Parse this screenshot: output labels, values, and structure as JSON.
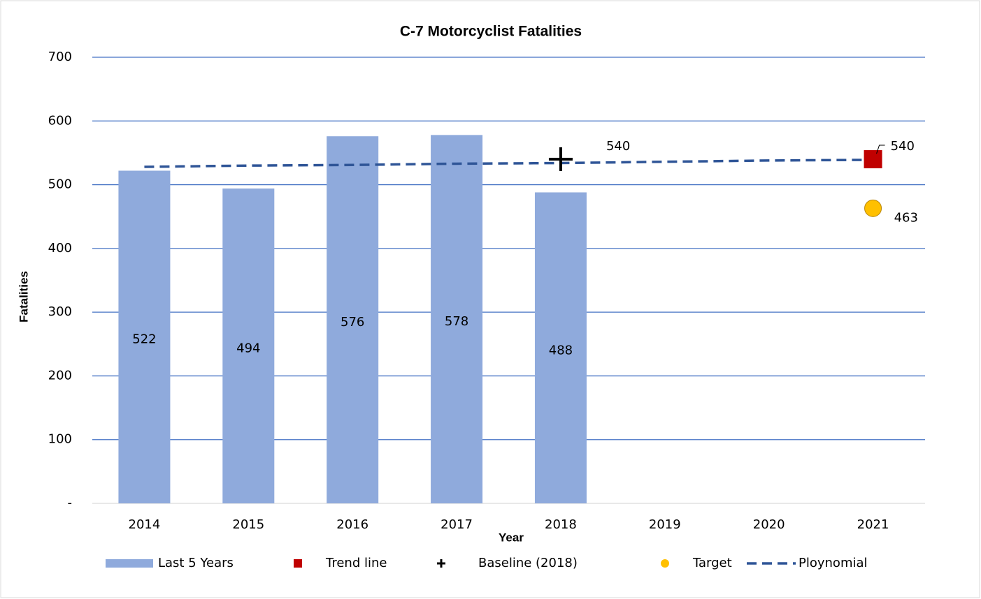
{
  "chart_data": {
    "type": "bar",
    "title": "C-7 Motorcyclist Fatalities",
    "x_label": "Year",
    "y_label": "Fatalities",
    "categories": [
      "2014",
      "2015",
      "2016",
      "2017",
      "2018",
      "2019",
      "2020",
      "2021"
    ],
    "ylim": [
      0,
      700
    ],
    "yticks": [
      {
        "value": 0,
        "label": "-"
      },
      100,
      200,
      300,
      400,
      500,
      600,
      700
    ],
    "grid": true,
    "legend": "bottom",
    "series": [
      {
        "name": "Last 5 Years",
        "type": "bar",
        "color": "#8faadc",
        "values": [
          522,
          494,
          576,
          578,
          488,
          null,
          null,
          null
        ]
      },
      {
        "name": "Trend line",
        "type": "scatter",
        "marker": "square",
        "color": "#c00000",
        "values": [
          null,
          null,
          null,
          null,
          null,
          null,
          null,
          540
        ]
      },
      {
        "name": "Baseline (2018)",
        "type": "scatter",
        "marker": "plus",
        "color": "#000000",
        "values": [
          null,
          null,
          null,
          null,
          540,
          null,
          null,
          null
        ]
      },
      {
        "name": "Target",
        "type": "scatter",
        "marker": "circle",
        "color": "#ffc000",
        "values": [
          null,
          null,
          null,
          null,
          null,
          null,
          null,
          463
        ]
      },
      {
        "name": "Ploynomial",
        "type": "line",
        "dashed": true,
        "color": "#2f5597",
        "values": [
          528,
          530,
          531,
          533,
          534,
          536,
          538,
          539
        ]
      }
    ]
  }
}
